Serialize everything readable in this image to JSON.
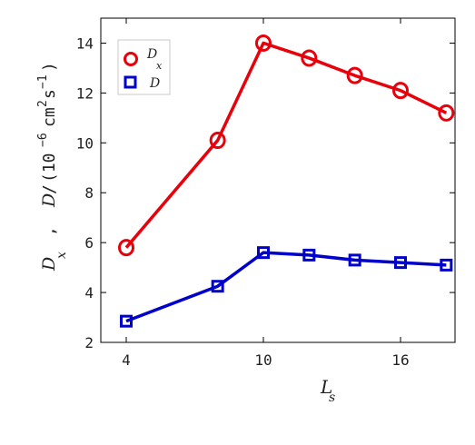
{
  "chart_data": {
    "type": "line",
    "x": [
      4,
      8,
      10,
      12,
      14,
      16,
      18
    ],
    "xticks": [
      4,
      10,
      16
    ],
    "xlim": [
      3,
      18
    ],
    "ylim": [
      2,
      15
    ],
    "yticks": [
      2,
      4,
      6,
      8,
      10,
      12,
      14
    ],
    "xlabel": {
      "main": "L",
      "sub": "s"
    },
    "ylabel": {
      "dx_main": "D",
      "dx_sub": "x",
      "sep": ",",
      "d": "D",
      "slash": "/",
      "unit_open": "(10",
      "unit_exp1": "−6",
      "unit_mid": "cm",
      "unit_exp2": "2",
      "unit_s": "s",
      "unit_exp3": "−1",
      "unit_close": ")"
    },
    "series": [
      {
        "name": "D_x",
        "legend_main": "D",
        "legend_sub": "x",
        "marker": "circle",
        "color": "#e8000b",
        "values": [
          5.8,
          10.1,
          14.0,
          13.4,
          12.7,
          12.1,
          11.2
        ]
      },
      {
        "name": "D",
        "legend_main": "D",
        "legend_sub": "",
        "marker": "square",
        "color": "#0000cc",
        "values": [
          2.85,
          4.25,
          5.6,
          5.5,
          5.3,
          5.2,
          5.1
        ]
      }
    ],
    "legend_position": "top-left",
    "grid": false
  }
}
